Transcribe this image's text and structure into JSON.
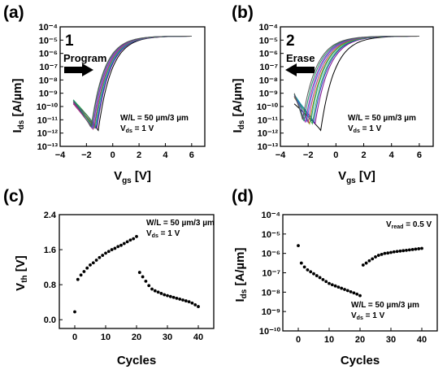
{
  "chart_data": [
    {
      "panel": "(a)",
      "type": "line",
      "xlabel": "V",
      "xlabel_sub": "gs",
      "xlabel_unit": "[V]",
      "ylabel": "I",
      "ylabel_sub": "ds",
      "ylabel_unit": "[A/µm]",
      "xlim": [
        -4,
        7
      ],
      "ylim_log10": [
        -13,
        -4
      ],
      "log_y": true,
      "xticks": [
        "−4",
        "−2",
        "0",
        "2",
        "4",
        "6"
      ],
      "yticks": [
        "10⁻¹³",
        "10⁻¹²",
        "10⁻¹¹",
        "10⁻¹⁰",
        "10⁻⁹",
        "10⁻⁸",
        "10⁻⁷",
        "10⁻⁶",
        "10⁻⁵",
        "10⁻⁴"
      ],
      "annotations": {
        "number": "1",
        "arrow_label": "Program",
        "wl": "W/L = 50 µm/3 µm",
        "vds": "V",
        "vds_sub": "ds",
        "vds_val": " = 1 V"
      },
      "series": [
        {
          "color": "#000000",
          "vmin": -1.1,
          "logmin": -11.8
        },
        {
          "color": "#7a0a8a",
          "vmin": -1.2,
          "logmin": -11.6
        },
        {
          "color": "#1f3fbf",
          "vmin": -1.25,
          "logmin": -11.7
        },
        {
          "color": "#2ea84a",
          "vmin": -1.3,
          "logmin": -11.5
        },
        {
          "color": "#17a9a0",
          "vmin": -1.35,
          "logmin": -11.7
        },
        {
          "color": "#8a8a00",
          "vmin": -1.4,
          "logmin": -11.6
        },
        {
          "color": "#b0307a",
          "vmin": -1.45,
          "logmin": -11.8
        },
        {
          "color": "#3c6fe0",
          "vmin": -1.5,
          "logmin": -11.6
        },
        {
          "color": "#9c27b0",
          "vmin": -1.55,
          "logmin": -11.7
        },
        {
          "color": "#1b8e6a",
          "vmin": -1.6,
          "logmin": -11.5
        },
        {
          "color": "#555555",
          "vmin": -1.65,
          "logmin": -11.6
        }
      ]
    },
    {
      "panel": "(b)",
      "type": "line",
      "xlabel": "V",
      "xlabel_sub": "gs",
      "xlabel_unit": "[V]",
      "ylabel": "I",
      "ylabel_sub": "ds",
      "ylabel_unit": "[A/µm]",
      "xlim": [
        -4,
        7
      ],
      "ylim_log10": [
        -13,
        -4
      ],
      "log_y": true,
      "xticks": [
        "−4",
        "−2",
        "0",
        "2",
        "4",
        "6"
      ],
      "yticks": [
        "10⁻¹³",
        "10⁻¹²",
        "10⁻¹¹",
        "10⁻¹⁰",
        "10⁻⁹",
        "10⁻⁸",
        "10⁻⁷",
        "10⁻⁶",
        "10⁻⁵",
        "10⁻⁴"
      ],
      "annotations": {
        "number": "2",
        "arrow_label": "Erase",
        "wl": "W/L = 50 µm/3 µm",
        "vds": "V",
        "vds_sub": "ds",
        "vds_val": " = 1 V"
      },
      "series": [
        {
          "color": "#000000",
          "vmin": -1.1,
          "logmin": -11.8
        },
        {
          "color": "#7a0a8a",
          "vmin": -1.5,
          "logmin": -11.3
        },
        {
          "color": "#1f3fbf",
          "vmin": -1.6,
          "logmin": -11.2
        },
        {
          "color": "#2ea84a",
          "vmin": -1.7,
          "logmin": -11.3
        },
        {
          "color": "#17a9a0",
          "vmin": -1.8,
          "logmin": -11.1
        },
        {
          "color": "#8a8a00",
          "vmin": -1.9,
          "logmin": -11.3
        },
        {
          "color": "#b0307a",
          "vmin": -2.0,
          "logmin": -11.2
        },
        {
          "color": "#3c6fe0",
          "vmin": -2.1,
          "logmin": -11.1
        },
        {
          "color": "#9c27b0",
          "vmin": -2.2,
          "logmin": -11.2
        },
        {
          "color": "#1b8e6a",
          "vmin": -2.3,
          "logmin": -11.1
        },
        {
          "color": "#555555",
          "vmin": -2.4,
          "logmin": -11.0
        }
      ]
    },
    {
      "panel": "(c)",
      "type": "scatter",
      "xlabel": "Cycles",
      "ylabel": "V",
      "ylabel_sub": "th",
      "ylabel_unit": "[V]",
      "xlim": [
        -5,
        45
      ],
      "ylim": [
        -0.2,
        2.4
      ],
      "xticks": [
        0,
        10,
        20,
        30,
        40
      ],
      "yticks": [
        "0.0",
        "0.8",
        "1.6",
        "2.4"
      ],
      "ytick_values": [
        0.0,
        0.8,
        1.6,
        2.4
      ],
      "annotations": {
        "wl": "W/L = 50 µm/3 µm",
        "vds": "V",
        "vds_sub": "ds",
        "vds_val": " = 1 V"
      },
      "x": [
        0,
        1,
        2,
        3,
        4,
        5,
        6,
        7,
        8,
        9,
        10,
        11,
        12,
        13,
        14,
        15,
        16,
        17,
        18,
        19,
        20,
        21,
        22,
        23,
        24,
        25,
        26,
        27,
        28,
        29,
        30,
        31,
        32,
        33,
        34,
        35,
        36,
        37,
        38,
        39,
        40
      ],
      "y": [
        0.18,
        0.92,
        1.02,
        1.1,
        1.18,
        1.25,
        1.3,
        1.36,
        1.42,
        1.47,
        1.52,
        1.56,
        1.6,
        1.63,
        1.67,
        1.7,
        1.74,
        1.78,
        1.82,
        1.85,
        1.9,
        1.08,
        0.98,
        0.88,
        0.78,
        0.7,
        0.66,
        0.63,
        0.6,
        0.57,
        0.55,
        0.53,
        0.51,
        0.49,
        0.47,
        0.45,
        0.43,
        0.41,
        0.38,
        0.34,
        0.3
      ]
    },
    {
      "panel": "(d)",
      "type": "scatter",
      "xlabel": "Cycles",
      "ylabel": "I",
      "ylabel_sub": "ds",
      "ylabel_unit": "[A/µm]",
      "log_y": true,
      "xlim": [
        -5,
        45
      ],
      "ylim_log10": [
        -10,
        -4
      ],
      "xticks": [
        0,
        10,
        20,
        30,
        40
      ],
      "yticks": [
        "10⁻¹⁰",
        "10⁻⁹",
        "10⁻⁸",
        "10⁻⁷",
        "10⁻⁶",
        "10⁻⁵",
        "10⁻⁴"
      ],
      "annotations": {
        "vread": "V",
        "vread_sub": "read",
        "vread_val": " = 0.5 V",
        "wl": "W/L = 50 µm/3 µm",
        "vds": "V",
        "vds_sub": "ds",
        "vds_val": " = 1 V"
      },
      "x": [
        0,
        1,
        2,
        3,
        4,
        5,
        6,
        7,
        8,
        9,
        10,
        11,
        12,
        13,
        14,
        15,
        16,
        17,
        18,
        19,
        20,
        21,
        22,
        23,
        24,
        25,
        26,
        27,
        28,
        29,
        30,
        31,
        32,
        33,
        34,
        35,
        36,
        37,
        38,
        39,
        40
      ],
      "y_log10": [
        -5.6,
        -6.5,
        -6.7,
        -6.85,
        -6.95,
        -7.05,
        -7.15,
        -7.25,
        -7.35,
        -7.45,
        -7.55,
        -7.62,
        -7.68,
        -7.74,
        -7.8,
        -7.86,
        -7.92,
        -7.98,
        -8.04,
        -8.1,
        -8.18,
        -6.6,
        -6.5,
        -6.38,
        -6.28,
        -6.18,
        -6.1,
        -6.05,
        -6.0,
        -5.98,
        -5.95,
        -5.92,
        -5.9,
        -5.88,
        -5.86,
        -5.84,
        -5.82,
        -5.8,
        -5.78,
        -5.76,
        -5.74
      ]
    }
  ]
}
